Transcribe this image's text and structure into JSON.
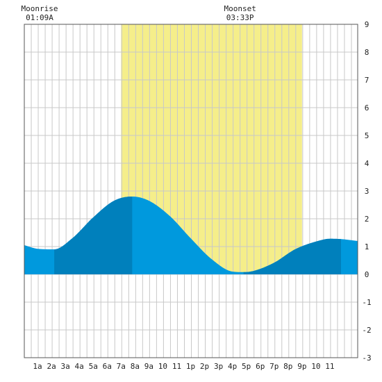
{
  "chart_data": {
    "type": "area",
    "title": "",
    "xlabel": "",
    "ylabel": "",
    "x_tick_labels": [
      "1a",
      "2a",
      "3a",
      "4a",
      "5a",
      "6a",
      "7a",
      "8a",
      "9a",
      "10",
      "11",
      "1p",
      "2p",
      "3p",
      "4p",
      "5p",
      "6p",
      "7p",
      "8p",
      "9p",
      "10",
      "11"
    ],
    "ylim": [
      -3,
      9
    ],
    "y_ticks": [
      9,
      8,
      7,
      6,
      5,
      4,
      3,
      2,
      1,
      0,
      -1,
      -2,
      -3
    ],
    "x_range_hours": [
      0.05,
      24.0
    ],
    "daylight_hours": [
      7.0,
      20.0
    ],
    "series": [
      {
        "x": [
          0.05,
          1.0,
          2.2,
          3.5,
          5.0,
          6.5,
          7.8,
          9.0,
          10.5,
          12.0,
          13.5,
          15.0,
          15.8,
          16.5,
          18.0,
          19.5,
          21.0,
          22.0,
          22.8,
          24.0
        ],
        "y": [
          1.05,
          0.92,
          0.9,
          1.3,
          2.05,
          2.65,
          2.8,
          2.65,
          2.1,
          1.3,
          0.55,
          0.1,
          0.08,
          0.12,
          0.42,
          0.9,
          1.18,
          1.28,
          1.27,
          1.2
        ]
      }
    ],
    "annotations": [
      {
        "label": "Moonrise",
        "time": "01:09A",
        "hour": 1.15
      },
      {
        "label": "Moonset",
        "time": "03:33P",
        "hour": 15.55
      }
    ],
    "colors": {
      "daylight": "#f5ee8a",
      "tide_light": "#0099dd",
      "tide_dark": "#0080bc",
      "grid": "#c8c8c8",
      "axis": "#555555"
    },
    "dark_bands": [
      [
        2.2,
        7.8
      ],
      [
        15.8,
        22.8
      ]
    ]
  }
}
